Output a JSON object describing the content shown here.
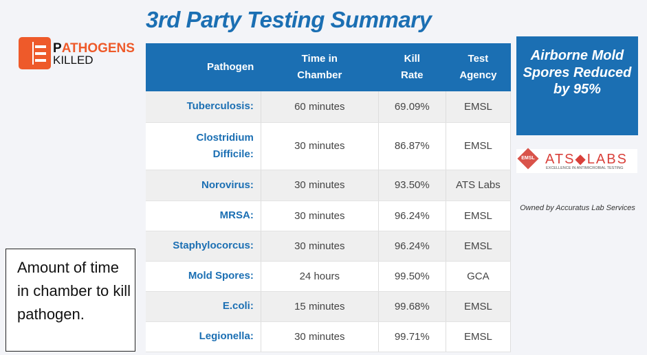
{
  "title": "3rd Party Testing Summary",
  "logo": {
    "text1_first": "P",
    "text1_rest": "ATHOGENS",
    "text2": "KILLED"
  },
  "table": {
    "headers": [
      "Pathogen",
      "Time in Chamber",
      "Kill Rate",
      "Test Agency"
    ],
    "rows": [
      [
        "Tuberculosis:",
        "60 minutes",
        "69.09%",
        "EMSL"
      ],
      [
        "Clostridium Difficile:",
        "30 minutes",
        "86.87%",
        "EMSL"
      ],
      [
        "Norovirus:",
        "30 minutes",
        "93.50%",
        "ATS Labs"
      ],
      [
        "MRSA:",
        "30 minutes",
        "96.24%",
        "EMSL"
      ],
      [
        "Staphylocorcus:",
        "30 minutes",
        "96.24%",
        "EMSL"
      ],
      [
        "Mold Spores:",
        "24 hours",
        "99.50%",
        "GCA"
      ],
      [
        "E.coli:",
        "15 minutes",
        "99.68%",
        "EMSL"
      ],
      [
        "Legionella:",
        "30 minutes",
        "99.71%",
        "EMSL"
      ]
    ]
  },
  "highlight": "Airborne Mold Spores Reduced by 95%",
  "ats_logo": {
    "emsl": "EMSL",
    "name": "ATS◆LABS",
    "tagline": "EXCELLENCE IN ANTIMICROBIAL TESTING"
  },
  "owned_by": "Owned by Accuratus Lab Services",
  "note": "Amount of time in chamber to kill pathogen.",
  "colors": {
    "brand_blue": "#1b6fb3",
    "logo_orange": "#ee5a2a",
    "ats_red": "#d9403a"
  }
}
